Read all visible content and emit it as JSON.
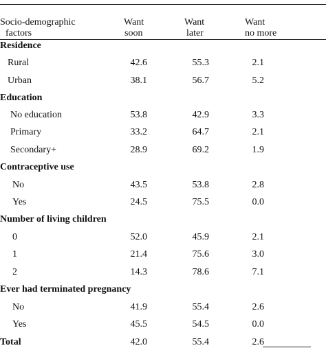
{
  "header": {
    "col0_line1": "Socio-demographic",
    "col0_line2": "factors",
    "col1_line1": "Want",
    "col1_line2": "soon",
    "col2_line1": "Want",
    "col2_line2": "later",
    "col3_line1": "Want",
    "col3_line2": "no more"
  },
  "rows": [
    {
      "type": "section",
      "label": "Residence"
    },
    {
      "type": "data",
      "label": "Rural",
      "soon": "42.6",
      "later": "55.3",
      "no_more": "2.1"
    },
    {
      "type": "data",
      "label": "Urban",
      "soon": "38.1",
      "later": "56.7",
      "no_more": "5.2"
    },
    {
      "type": "section",
      "label": "Education"
    },
    {
      "type": "data",
      "label": "No education",
      "soon": "53.8",
      "later": "42.9",
      "no_more": "3.3"
    },
    {
      "type": "data",
      "label": "Primary",
      "soon": "33.2",
      "later": "64.7",
      "no_more": "2.1"
    },
    {
      "type": "data",
      "label": "Secondary+",
      "soon": "28.9",
      "later": "69.2",
      "no_more": "1.9"
    },
    {
      "type": "section",
      "label": "Contraceptive use"
    },
    {
      "type": "data",
      "label": "No",
      "soon": "43.5",
      "later": "53.8",
      "no_more": "2.8"
    },
    {
      "type": "data",
      "label": "Yes",
      "soon": "24.5",
      "later": "75.5",
      "no_more": "0.0"
    },
    {
      "type": "section",
      "label": "Number of living children"
    },
    {
      "type": "data",
      "label": "0",
      "soon": "52.0",
      "later": "45.9",
      "no_more": "2.1"
    },
    {
      "type": "data",
      "label": "1",
      "soon": "21.4",
      "later": "75.6",
      "no_more": "3.0"
    },
    {
      "type": "data",
      "label": "2",
      "soon": "14.3",
      "later": "78.6",
      "no_more": "7.1"
    },
    {
      "type": "section",
      "label": "Ever had terminated pregnancy"
    },
    {
      "type": "data",
      "label": "No",
      "soon": "41.9",
      "later": "55.4",
      "no_more": "2.6"
    },
    {
      "type": "data",
      "label": "Yes",
      "soon": "45.5",
      "later": "54.5",
      "no_more": "0.0"
    }
  ],
  "total": {
    "label": "Total",
    "soon": "42.0",
    "later": "55.4",
    "no_more": "2.6"
  }
}
